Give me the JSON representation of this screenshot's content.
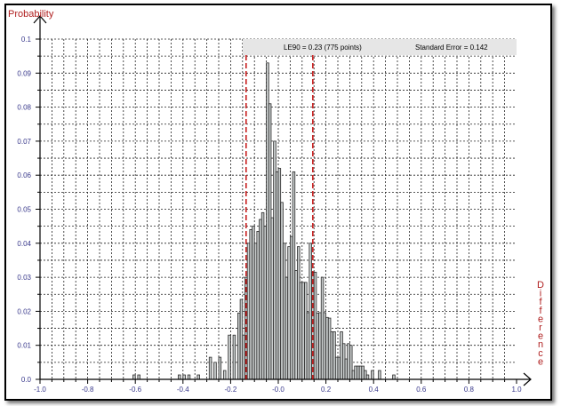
{
  "chart_data": {
    "type": "bar",
    "ylabel": "Probability",
    "xlabel": "Difference",
    "xlim": [
      -1.0,
      1.0
    ],
    "ylim": [
      0,
      0.1
    ],
    "grid": true,
    "x_ticks": [
      "-1.0",
      "-0.8",
      "-0.6",
      "-0.4",
      "-0.2",
      "-0.0",
      "0.2",
      "0.4",
      "0.6",
      "0.8",
      "1.0"
    ],
    "y_ticks": [
      "0.0",
      "0.01",
      "0.02",
      "0.03",
      "0.04",
      "0.05",
      "0.06",
      "0.07",
      "0.08",
      "0.09",
      "0.1"
    ],
    "annotation": {
      "le90": "LE90 = 0.23  (775 points)",
      "std_error": "Standard Error = 0.142"
    },
    "reference_lines": [
      -0.135,
      0.145
    ],
    "bar_width": 0.01,
    "bars": [
      {
        "x": -0.605,
        "y": 0.0013
      },
      {
        "x": -0.585,
        "y": 0.0013
      },
      {
        "x": -0.415,
        "y": 0.0013
      },
      {
        "x": -0.395,
        "y": 0.0013
      },
      {
        "x": -0.375,
        "y": 0.0013
      },
      {
        "x": -0.335,
        "y": 0.0013
      },
      {
        "x": -0.285,
        "y": 0.0065
      },
      {
        "x": -0.265,
        "y": 0.005
      },
      {
        "x": -0.245,
        "y": 0.0065
      },
      {
        "x": -0.225,
        "y": 0.0026
      },
      {
        "x": -0.205,
        "y": 0.013
      },
      {
        "x": -0.185,
        "y": 0.013
      },
      {
        "x": -0.165,
        "y": 0.0195
      },
      {
        "x": -0.155,
        "y": 0.0235
      },
      {
        "x": -0.145,
        "y": 0.013
      },
      {
        "x": -0.135,
        "y": 0.03
      },
      {
        "x": -0.125,
        "y": 0.04
      },
      {
        "x": -0.115,
        "y": 0.044
      },
      {
        "x": -0.105,
        "y": 0.045
      },
      {
        "x": -0.095,
        "y": 0.04
      },
      {
        "x": -0.085,
        "y": 0.0435
      },
      {
        "x": -0.075,
        "y": 0.047
      },
      {
        "x": -0.065,
        "y": 0.049
      },
      {
        "x": -0.055,
        "y": 0.045
      },
      {
        "x": -0.045,
        "y": 0.093
      },
      {
        "x": -0.035,
        "y": 0.081
      },
      {
        "x": -0.025,
        "y": 0.0475
      },
      {
        "x": -0.015,
        "y": 0.07
      },
      {
        "x": -0.005,
        "y": 0.061
      },
      {
        "x": 0.005,
        "y": 0.062
      },
      {
        "x": 0.015,
        "y": 0.052
      },
      {
        "x": 0.025,
        "y": 0.04
      },
      {
        "x": 0.035,
        "y": 0.03
      },
      {
        "x": 0.045,
        "y": 0.039
      },
      {
        "x": 0.055,
        "y": 0.042
      },
      {
        "x": 0.065,
        "y": 0.061
      },
      {
        "x": 0.075,
        "y": 0.032
      },
      {
        "x": 0.085,
        "y": 0.039
      },
      {
        "x": 0.095,
        "y": 0.0285
      },
      {
        "x": 0.105,
        "y": 0.0285
      },
      {
        "x": 0.115,
        "y": 0.0285
      },
      {
        "x": 0.125,
        "y": 0.0196
      },
      {
        "x": 0.135,
        "y": 0.04
      },
      {
        "x": 0.145,
        "y": 0.0315
      },
      {
        "x": 0.155,
        "y": 0.0315
      },
      {
        "x": 0.165,
        "y": 0.0195
      },
      {
        "x": 0.175,
        "y": 0.0196
      },
      {
        "x": 0.185,
        "y": 0.03
      },
      {
        "x": 0.195,
        "y": 0.0196
      },
      {
        "x": 0.205,
        "y": 0.0182
      },
      {
        "x": 0.215,
        "y": 0.018
      },
      {
        "x": 0.225,
        "y": 0.014
      },
      {
        "x": 0.235,
        "y": 0.014
      },
      {
        "x": 0.245,
        "y": 0.0065
      },
      {
        "x": 0.255,
        "y": 0.0065
      },
      {
        "x": 0.265,
        "y": 0.014
      },
      {
        "x": 0.275,
        "y": 0.0105
      },
      {
        "x": 0.285,
        "y": 0.006
      },
      {
        "x": 0.295,
        "y": 0.0105
      },
      {
        "x": 0.305,
        "y": 0.01
      },
      {
        "x": 0.315,
        "y": 0.0026
      },
      {
        "x": 0.325,
        "y": 0.0039
      },
      {
        "x": 0.335,
        "y": 0.0039
      },
      {
        "x": 0.345,
        "y": 0.0039
      },
      {
        "x": 0.355,
        "y": 0.0039
      },
      {
        "x": 0.365,
        "y": 0.0026
      },
      {
        "x": 0.375,
        "y": 0.0013
      },
      {
        "x": 0.395,
        "y": 0.0026
      },
      {
        "x": 0.425,
        "y": 0.0026
      },
      {
        "x": 0.485,
        "y": 0.0013
      }
    ],
    "colors": {
      "bar_fill": "#c8cccc",
      "bar_stroke": "#2a2a2a",
      "reference_line": "#c00000",
      "axis_title": "#b02020",
      "tick_text": "#3a3a8c",
      "grid": "#222222",
      "info_box": "#e6e6e6"
    }
  }
}
